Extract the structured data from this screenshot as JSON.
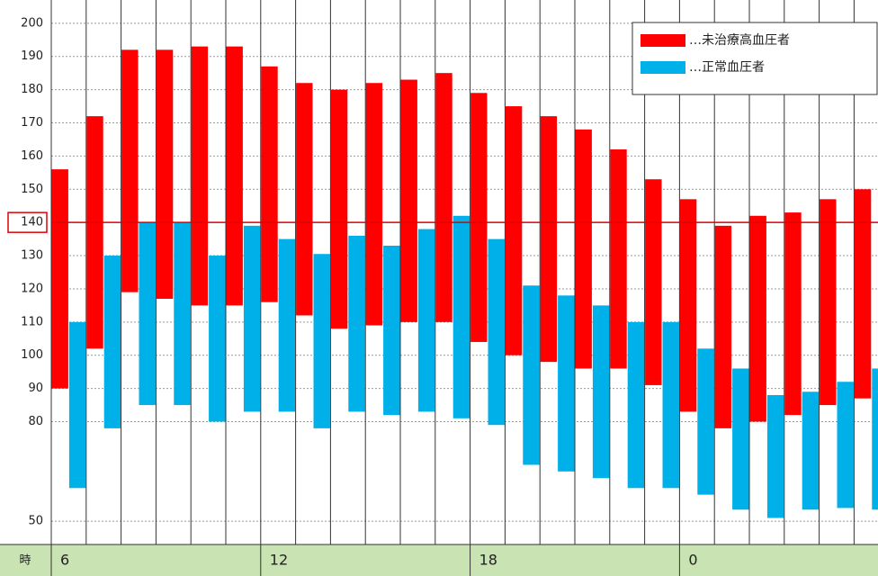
{
  "chart_data": {
    "type": "range-bar",
    "x_label": "時",
    "categories": [
      "6",
      null,
      null,
      null,
      null,
      null,
      "12",
      null,
      null,
      null,
      null,
      null,
      "18",
      null,
      null,
      null,
      null,
      null,
      "0",
      null,
      null,
      null,
      null,
      null
    ],
    "series": [
      {
        "name": "…未治療高血圧者",
        "color": "#ff0000",
        "high": [
          156,
          172,
          192,
          192,
          193,
          193,
          187,
          182,
          180,
          182,
          183,
          185,
          179,
          175,
          172,
          168,
          162,
          153,
          147,
          139,
          142,
          143,
          147,
          150
        ],
        "low": [
          90,
          102,
          119,
          117,
          115,
          115,
          116,
          112,
          108,
          109,
          110,
          110,
          104,
          100,
          98,
          96,
          96,
          91,
          83,
          78,
          80,
          82,
          85,
          87
        ]
      },
      {
        "name": "…正常血圧者",
        "color": "#00b0e8",
        "high": [
          110,
          130,
          140,
          140,
          130,
          139,
          135,
          130.5,
          136,
          133,
          138,
          142,
          135,
          121,
          118,
          115,
          110,
          110,
          102,
          96,
          88,
          89,
          92,
          96
        ],
        "low": [
          60,
          78,
          85,
          85,
          80,
          83,
          83,
          78,
          83,
          82,
          83,
          81,
          79,
          67,
          65,
          63,
          60,
          60,
          58,
          53.5,
          51,
          53.5,
          54,
          53.5
        ]
      }
    ],
    "ylim": [
      43,
      207
    ],
    "yticks": [
      50,
      80,
      90,
      100,
      110,
      120,
      130,
      140,
      150,
      160,
      170,
      180,
      190,
      200
    ],
    "reference_line": 140,
    "reference_color": "#e00000",
    "grid": true,
    "legend": "upper right"
  }
}
